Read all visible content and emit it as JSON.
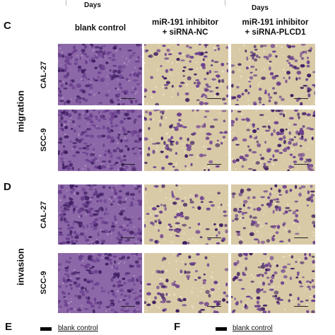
{
  "top_axis": {
    "left_label": "Days",
    "right_label": "Days"
  },
  "panels": {
    "C": {
      "letter": "C",
      "group_label": "migration"
    },
    "D": {
      "letter": "D",
      "group_label": "invasion"
    },
    "E": {
      "letter": "E",
      "legend_label": "blank control"
    },
    "F": {
      "letter": "F",
      "legend_label": "blank control"
    }
  },
  "columns": [
    {
      "line1": "blank control",
      "line2": ""
    },
    {
      "line1": "miR-191 inhibitor",
      "line2": "+ siRNA-NC"
    },
    {
      "line1": "miR-191 inhibitor",
      "line2": "+ siRNA-PLCD1"
    }
  ],
  "rows": [
    {
      "label": "CAL-27"
    },
    {
      "label": "SCC-9"
    },
    {
      "label": "CAL-27"
    },
    {
      "label": "SCC-9"
    }
  ],
  "colors": {
    "background_tan": "#d8caa6",
    "cell_purple": "#6b3f8e",
    "cell_dark": "#3f1f63",
    "dense_purple": "#8c68a8"
  },
  "cell_density": [
    [
      0.7,
      0.38,
      0.45
    ],
    [
      0.78,
      0.35,
      0.5
    ],
    [
      0.8,
      0.32,
      0.4
    ],
    [
      0.72,
      0.3,
      0.45
    ]
  ]
}
